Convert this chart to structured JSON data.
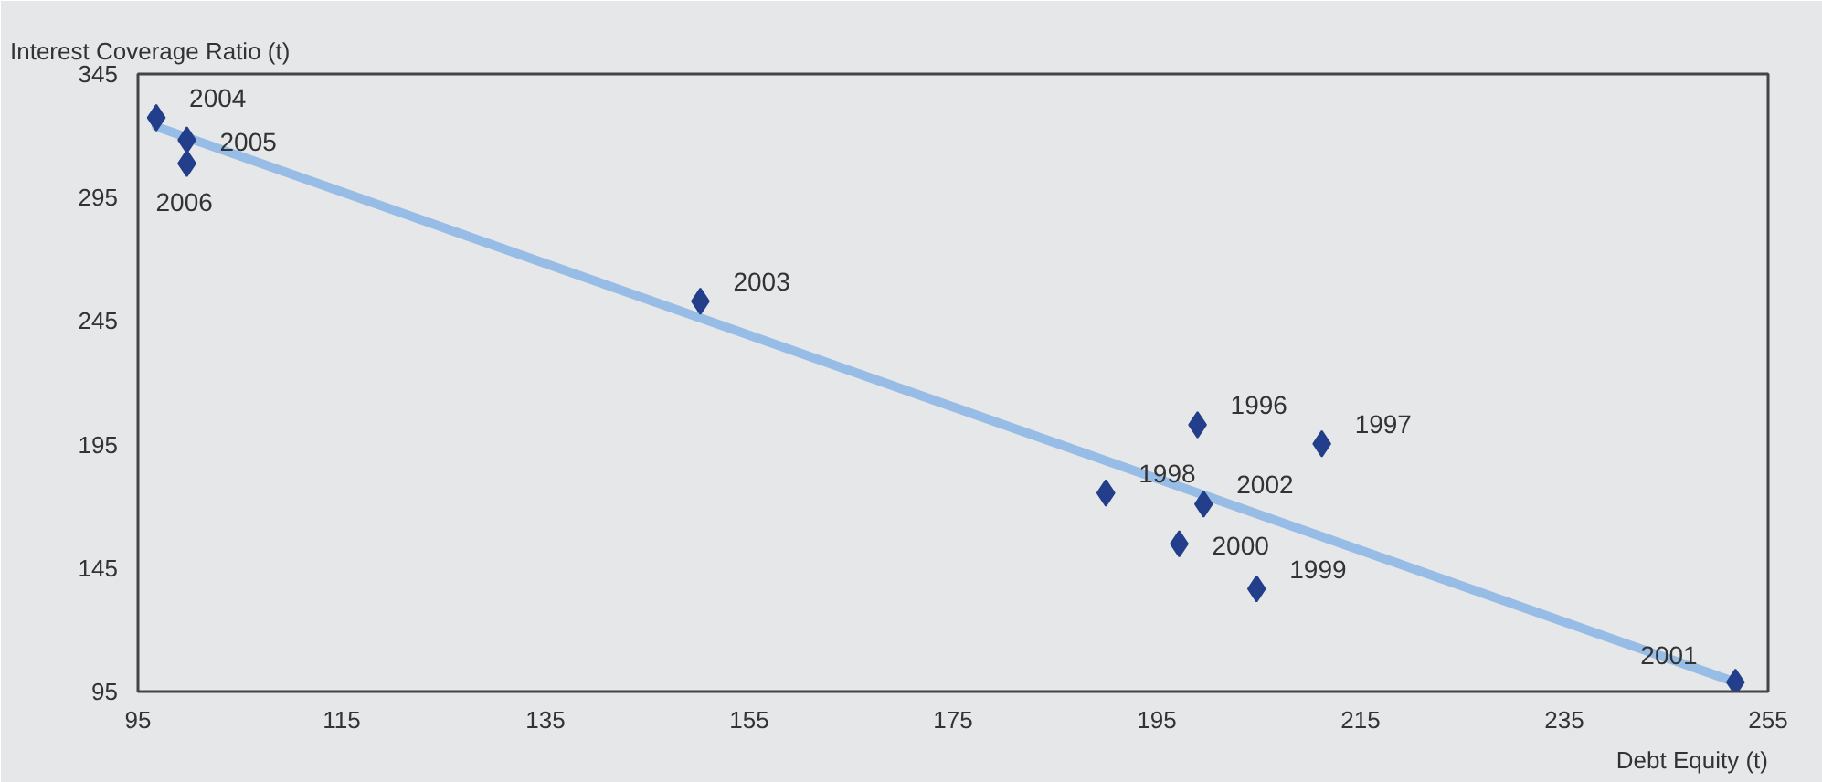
{
  "chart_data": {
    "type": "scatter",
    "ylabel": "Interest Coverage Ratio (t)",
    "xlabel": "Debt Equity (t)",
    "xlim": [
      95,
      255
    ],
    "ylim": [
      95,
      345
    ],
    "xticks": [
      95,
      115,
      135,
      155,
      175,
      195,
      215,
      235,
      255
    ],
    "yticks": [
      95,
      145,
      195,
      245,
      295,
      345
    ],
    "grid": false,
    "series": [
      {
        "color": "#233e8b",
        "marker": "diamond",
        "x": [
          199,
          211.2,
          190,
          204.8,
          197.2,
          251.8,
          199.6,
          150.2,
          96.8,
          99.8,
          99.8
        ],
        "values": [
          203,
          195.3,
          175.4,
          136.6,
          154.8,
          98.8,
          170.9,
          253,
          327.3,
          318.3,
          308.8
        ]
      },
      {
        "type": "line",
        "color": "#97bde6",
        "x": [
          96.8,
          251.8
        ],
        "values": [
          323.7,
          98.8
        ]
      }
    ],
    "annotations": [
      {
        "text": "1996",
        "x": 199,
        "y": 203
      },
      {
        "text": "1997",
        "x": 211.2,
        "y": 195.3
      },
      {
        "text": "1998",
        "x": 190,
        "y": 175.4
      },
      {
        "text": "1999",
        "x": 204.8,
        "y": 136.6
      },
      {
        "text": "2000",
        "x": 197.2,
        "y": 154.8
      },
      {
        "text": "2001",
        "x": 251.8,
        "y": 98.8
      },
      {
        "text": "2002",
        "x": 199.6,
        "y": 170.9
      },
      {
        "text": "2003",
        "x": 150.2,
        "y": 253
      },
      {
        "text": "2004",
        "x": 96.8,
        "y": 327.3
      },
      {
        "text": "2005",
        "x": 99.8,
        "y": 318.3
      },
      {
        "text": "2006",
        "x": 99.8,
        "y": 308.8
      }
    ]
  }
}
